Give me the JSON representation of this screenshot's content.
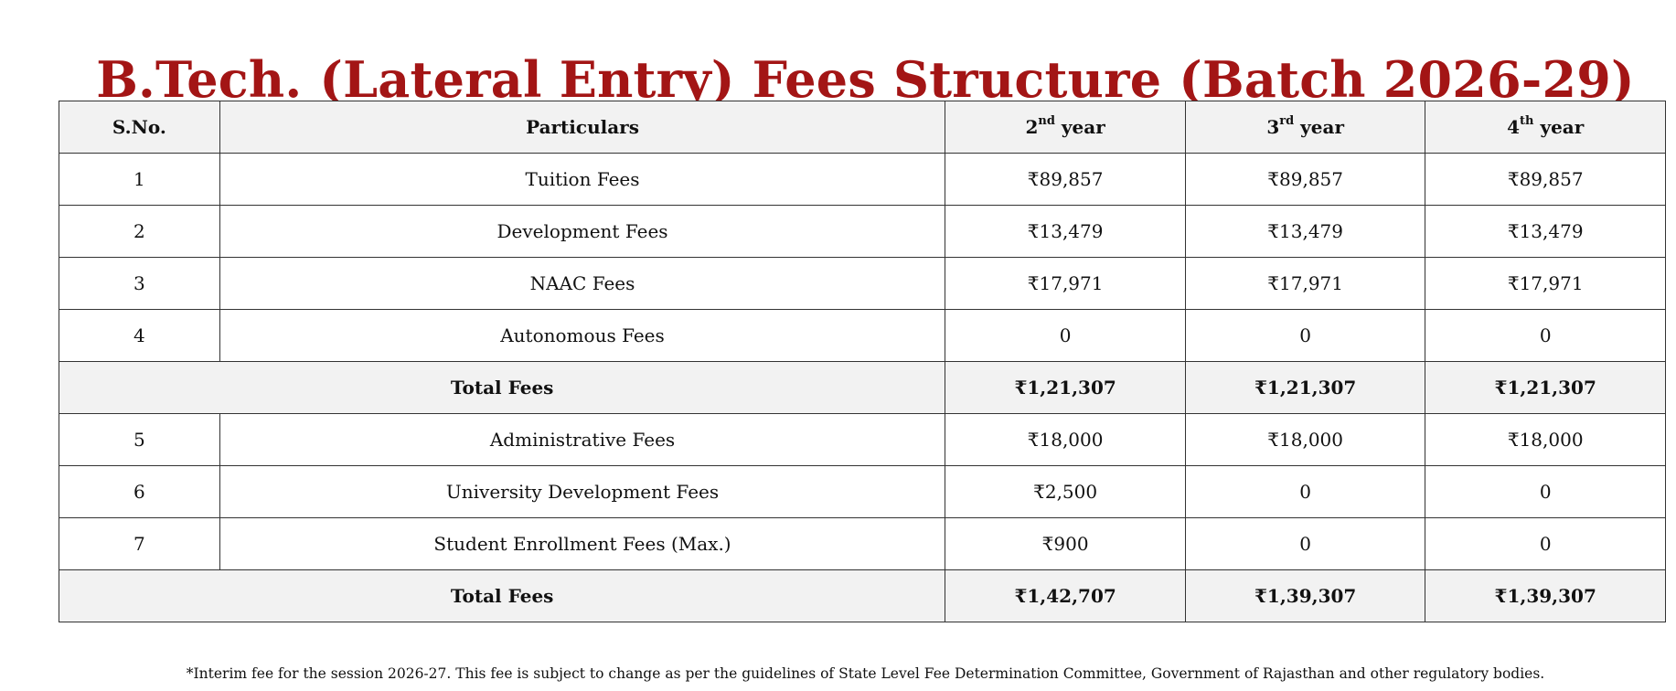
{
  "title": "B.Tech. (Lateral Entry) Fees Structure (Batch 2026-29)",
  "table": {
    "headers": {
      "sno": "S.No.",
      "particulars": "Particulars",
      "year2": {
        "num": "2",
        "sup": "nd",
        "word": " year"
      },
      "year3": {
        "num": "3",
        "sup": "rd",
        "word": " year"
      },
      "year4": {
        "num": "4",
        "sup": "th",
        "word": " year"
      }
    },
    "rows": [
      {
        "sno": "1",
        "particular": "Tuition Fees",
        "y2": "₹89,857",
        "y3": "₹89,857",
        "y4": "₹89,857"
      },
      {
        "sno": "2",
        "particular": "Development Fees",
        "y2": "₹13,479",
        "y3": "₹13,479",
        "y4": "₹13,479"
      },
      {
        "sno": "3",
        "particular": "NAAC Fees",
        "y2": "₹17,971",
        "y3": "₹17,971",
        "y4": "₹17,971"
      },
      {
        "sno": "4",
        "particular": "Autonomous Fees",
        "y2": "0",
        "y3": "0",
        "y4": "0"
      },
      {
        "total": true,
        "label": "Total Fees",
        "y2": "₹1,21,307",
        "y3": "₹1,21,307",
        "y4": "₹1,21,307"
      },
      {
        "sno": "5",
        "particular": "Administrative Fees",
        "y2": "₹18,000",
        "y3": "₹18,000",
        "y4": "₹18,000"
      },
      {
        "sno": "6",
        "particular": "University Development Fees",
        "y2": "₹2,500",
        "y3": "0",
        "y4": "0"
      },
      {
        "sno": "7",
        "particular": "Student Enrollment Fees (Max.)",
        "y2": "₹900",
        "y3": "0",
        "y4": "0"
      },
      {
        "total": true,
        "label": "Total Fees",
        "y2": "₹1,42,707",
        "y3": "₹1,39,307",
        "y4": "₹1,39,307"
      }
    ]
  },
  "note": "*Interim fee for the session 2026-27. This fee is subject to change as per the guidelines of State Level Fee Determination Committee, Government of Rajasthan and other regulatory bodies.",
  "colors": {
    "title": "#a31515",
    "header_bg": "#f2f2f2",
    "border": "#333333"
  }
}
